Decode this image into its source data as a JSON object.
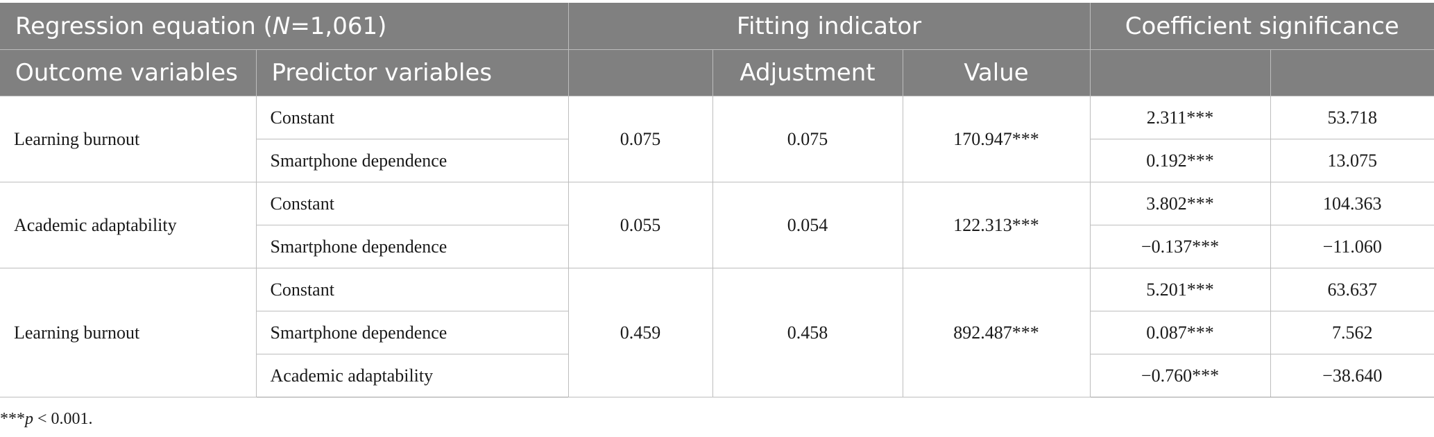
{
  "header": {
    "row1": {
      "regression_prefix": "Regression equation (",
      "regression_n": "N",
      "regression_suffix": "=1,061)",
      "fitting_indicator": "Fitting indicator",
      "coefficient_significance": "Coefficient significance"
    },
    "row2": {
      "outcome_variables": "Outcome variables",
      "predictor_variables": "Predictor variables",
      "col3": "",
      "adjustment": "Adjustment",
      "value": "Value",
      "col6": "",
      "col7": ""
    }
  },
  "groups": [
    {
      "outcome": "Learning burnout",
      "fit1": "0.075",
      "adjustment": "0.075",
      "value": "170.947***",
      "rows": [
        {
          "predictor": "Constant",
          "coef": "2.311***",
          "stat": "53.718"
        },
        {
          "predictor": "Smartphone dependence",
          "coef": "0.192***",
          "stat": "13.075"
        }
      ]
    },
    {
      "outcome": "Academic adaptability",
      "fit1": "0.055",
      "adjustment": "0.054",
      "value": "122.313***",
      "rows": [
        {
          "predictor": "Constant",
          "coef": "3.802***",
          "stat": "104.363"
        },
        {
          "predictor": "Smartphone dependence",
          "coef": "−0.137***",
          "stat": "−11.060"
        }
      ]
    },
    {
      "outcome": "Learning burnout",
      "fit1": "0.459",
      "adjustment": "0.458",
      "value": "892.487***",
      "rows": [
        {
          "predictor": "Constant",
          "coef": "5.201***",
          "stat": "63.637"
        },
        {
          "predictor": "Smartphone dependence",
          "coef": "0.087***",
          "stat": "7.562"
        },
        {
          "predictor": "Academic adaptability",
          "coef": "−0.760***",
          "stat": "−38.640"
        }
      ]
    }
  ],
  "note": {
    "stars": "***",
    "p": "p",
    "rest": " < 0.001."
  }
}
